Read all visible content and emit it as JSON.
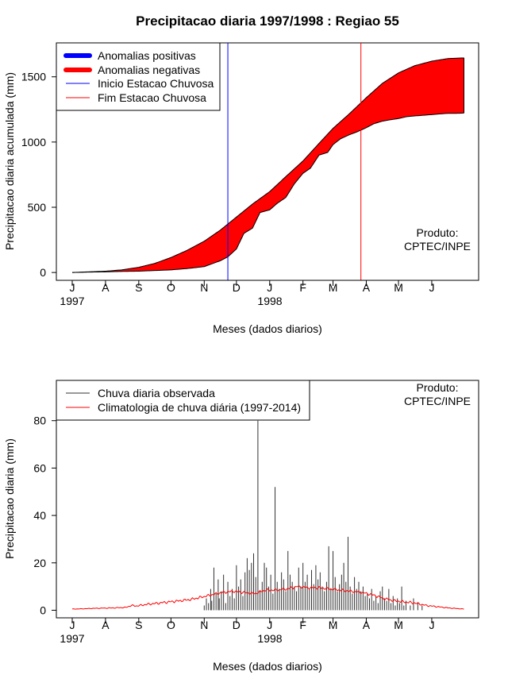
{
  "chart_data": [
    {
      "type": "area",
      "title": "Precipitacao diaria 1997/1998 : Regiao 55",
      "xlabel": "Meses (dados diarios)",
      "ylabel": "Precipitacao diaria acumulada (mm)",
      "ylim": [
        -60,
        1760
      ],
      "yticks": [
        0,
        500,
        1000,
        1500
      ],
      "x_months": [
        "J",
        "A",
        "S",
        "O",
        "N",
        "D",
        "J",
        "F",
        "M",
        "A",
        "M",
        "J"
      ],
      "year_labels": [
        "1997",
        "1998"
      ],
      "legend": [
        {
          "label": "Anomalias positivas",
          "color": "#0000ff",
          "style": "thick"
        },
        {
          "label": "Anomalias negativas",
          "color": "#ff0000",
          "style": "thick"
        },
        {
          "label": "Inicio Estacao Chuvosa",
          "color": "#0000ff",
          "style": "thin"
        },
        {
          "label": "Fim Estacao Chuvosa",
          "color": "#ff0000",
          "style": "thin"
        }
      ],
      "annotation": [
        "Produto:",
        "CPTEC/INPE"
      ],
      "series": [
        {
          "name": "Climatologia acumulada",
          "x": [
            0,
            15,
            31,
            46,
            62,
            77,
            92,
            107,
            123,
            138,
            153,
            168,
            184,
            199,
            215,
            230,
            243,
            258,
            274,
            289,
            304,
            319,
            335,
            350,
            365
          ],
          "values": [
            0,
            5,
            10,
            20,
            40,
            70,
            115,
            170,
            240,
            325,
            425,
            525,
            620,
            735,
            855,
            990,
            1105,
            1215,
            1340,
            1450,
            1530,
            1585,
            1620,
            1640,
            1645
          ]
        },
        {
          "name": "Observado acumulado",
          "x": [
            0,
            15,
            31,
            46,
            62,
            77,
            92,
            107,
            123,
            138,
            145,
            153,
            160,
            168,
            175,
            184,
            191,
            199,
            207,
            215,
            222,
            230,
            238,
            243,
            250,
            258,
            266,
            274,
            281,
            289,
            296,
            304,
            312,
            319,
            327,
            335,
            342,
            350,
            358,
            365
          ],
          "values": [
            0,
            3,
            5,
            8,
            10,
            15,
            20,
            30,
            45,
            90,
            120,
            180,
            300,
            340,
            460,
            480,
            530,
            575,
            680,
            760,
            800,
            900,
            920,
            980,
            1025,
            1055,
            1080,
            1110,
            1140,
            1160,
            1170,
            1180,
            1195,
            1200,
            1205,
            1210,
            1215,
            1220,
            1220,
            1222
          ]
        }
      ],
      "inicio_estacao_chuvosa_day": 145,
      "fim_estacao_chuvosa_day": 269,
      "colors": {
        "positive": "#0000ff",
        "negative": "#ff0000",
        "inicio": "#0000ff",
        "fim": "#ff0000"
      }
    },
    {
      "type": "bar",
      "xlabel": "Meses (dados diarios)",
      "ylabel": "Precipitacao diaria (mm)",
      "ylim": [
        -3.2,
        97
      ],
      "yticks": [
        0,
        20,
        40,
        60,
        80
      ],
      "x_months": [
        "J",
        "A",
        "S",
        "O",
        "N",
        "D",
        "J",
        "F",
        "M",
        "A",
        "M",
        "J"
      ],
      "year_labels": [
        "1997",
        "1998"
      ],
      "legend": [
        {
          "label": "Chuva diaria observada",
          "color": "#333333"
        },
        {
          "label": "Climatologia de chuva diária (1997-2014)",
          "color": "#ff0000"
        }
      ],
      "annotation": [
        "Produto:",
        "CPTEC/INPE"
      ],
      "observed_bars": [
        [
          123,
          2
        ],
        [
          125,
          5
        ],
        [
          127,
          3
        ],
        [
          129,
          9
        ],
        [
          130,
          4
        ],
        [
          132,
          18
        ],
        [
          134,
          7
        ],
        [
          136,
          13
        ],
        [
          137,
          5
        ],
        [
          139,
          8
        ],
        [
          141,
          15
        ],
        [
          143,
          3
        ],
        [
          145,
          12
        ],
        [
          147,
          6
        ],
        [
          149,
          9
        ],
        [
          151,
          5
        ],
        [
          153,
          19
        ],
        [
          155,
          10
        ],
        [
          157,
          13
        ],
        [
          159,
          6
        ],
        [
          161,
          16
        ],
        [
          163,
          22
        ],
        [
          165,
          17
        ],
        [
          167,
          20
        ],
        [
          169,
          24
        ],
        [
          171,
          14
        ],
        [
          173,
          80
        ],
        [
          175,
          8
        ],
        [
          177,
          12
        ],
        [
          179,
          20
        ],
        [
          181,
          18
        ],
        [
          183,
          10
        ],
        [
          185,
          15
        ],
        [
          187,
          7
        ],
        [
          189,
          52
        ],
        [
          191,
          12
        ],
        [
          193,
          9
        ],
        [
          195,
          16
        ],
        [
          197,
          13
        ],
        [
          199,
          8
        ],
        [
          201,
          25
        ],
        [
          203,
          15
        ],
        [
          205,
          12
        ],
        [
          207,
          10
        ],
        [
          209,
          8
        ],
        [
          211,
          18
        ],
        [
          213,
          10
        ],
        [
          215,
          20
        ],
        [
          217,
          12
        ],
        [
          219,
          15
        ],
        [
          221,
          9
        ],
        [
          223,
          17
        ],
        [
          225,
          11
        ],
        [
          227,
          19
        ],
        [
          229,
          13
        ],
        [
          231,
          16
        ],
        [
          233,
          10
        ],
        [
          235,
          8
        ],
        [
          237,
          12
        ],
        [
          239,
          27
        ],
        [
          241,
          9
        ],
        [
          243,
          25
        ],
        [
          245,
          14
        ],
        [
          247,
          8
        ],
        [
          249,
          11
        ],
        [
          251,
          15
        ],
        [
          253,
          20
        ],
        [
          255,
          12
        ],
        [
          257,
          31
        ],
        [
          259,
          10
        ],
        [
          261,
          7
        ],
        [
          263,
          14
        ],
        [
          265,
          9
        ],
        [
          267,
          12
        ],
        [
          269,
          8
        ],
        [
          271,
          10
        ],
        [
          273,
          6
        ],
        [
          275,
          7
        ],
        [
          277,
          5
        ],
        [
          279,
          9
        ],
        [
          281,
          4
        ],
        [
          283,
          6
        ],
        [
          285,
          3
        ],
        [
          287,
          8
        ],
        [
          289,
          10
        ],
        [
          291,
          5
        ],
        [
          293,
          4
        ],
        [
          295,
          9
        ],
        [
          297,
          3
        ],
        [
          299,
          6
        ],
        [
          301,
          2
        ],
        [
          303,
          5
        ],
        [
          305,
          3
        ],
        [
          307,
          10
        ],
        [
          309,
          2
        ],
        [
          311,
          4
        ],
        [
          315,
          2
        ],
        [
          318,
          5
        ],
        [
          322,
          3
        ],
        [
          326,
          2
        ]
      ],
      "climatology": {
        "x": [
          0,
          10,
          20,
          30,
          40,
          50,
          55,
          60,
          70,
          80,
          90,
          100,
          110,
          120,
          130,
          140,
          150,
          160,
          170,
          180,
          190,
          200,
          210,
          220,
          230,
          240,
          250,
          260,
          270,
          280,
          290,
          300,
          310,
          320,
          330,
          340,
          350,
          365
        ],
        "values": [
          0.5,
          0.6,
          0.8,
          0.9,
          1.0,
          1.2,
          2.0,
          1.8,
          2.5,
          3.0,
          3.5,
          4.0,
          4.5,
          5.5,
          6.5,
          7.5,
          8.0,
          7.5,
          7.0,
          8.5,
          8.5,
          9.0,
          10.0,
          9.5,
          9.5,
          9.0,
          8.5,
          8.0,
          7.5,
          6.5,
          5.0,
          4.0,
          3.5,
          3.0,
          2.0,
          1.5,
          1.0,
          0.5
        ]
      }
    }
  ]
}
